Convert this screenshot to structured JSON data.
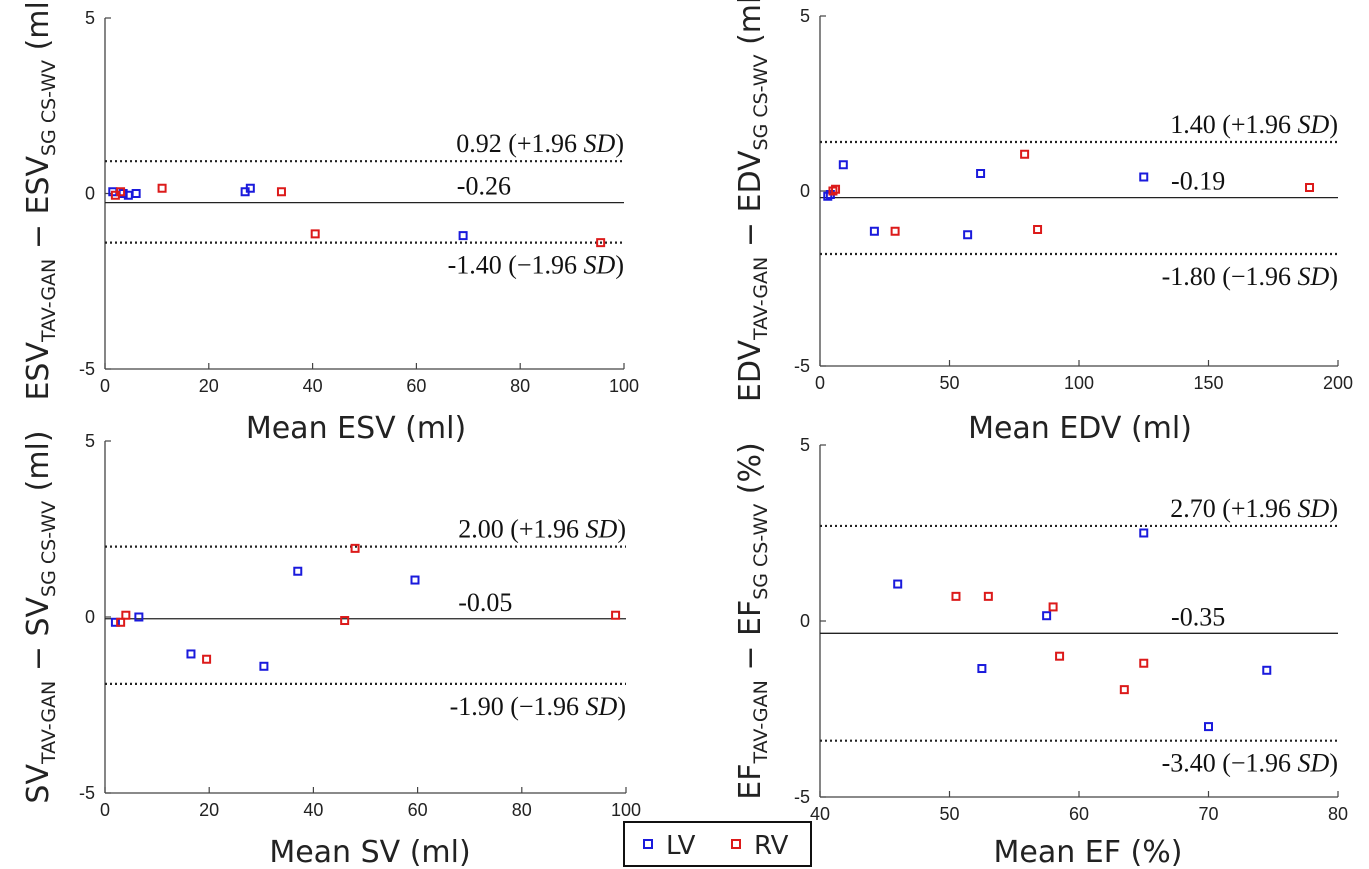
{
  "chart_data": [
    {
      "type": "scatter",
      "xlabel": "Mean ESV (ml)",
      "ylabel": {
        "main": "ESV",
        "sub1": "TAV-GAN",
        "mid": " − ESV",
        "sub2": "SG CS-WV",
        "unit": " (ml)"
      },
      "xlim": [
        0,
        100
      ],
      "ylim": [
        -5,
        5
      ],
      "xticks": [
        "0",
        "20",
        "40",
        "60",
        "80",
        "100"
      ],
      "yticks": [
        "-5",
        "0",
        "5"
      ],
      "mean": -0.26,
      "upper": 0.92,
      "lower": -1.4,
      "mean_label": "-0.26",
      "upper_label": "0.92 (+1.96 SD)",
      "lower_label": "-1.40 (−1.96 SD)",
      "series": [
        {
          "name": "LV",
          "points": [
            [
              1.5,
              0.05
            ],
            [
              3.5,
              0.0
            ],
            [
              4.5,
              -0.05
            ],
            [
              6,
              0.0
            ],
            [
              27,
              0.05
            ],
            [
              28,
              0.15
            ],
            [
              69,
              -1.2
            ]
          ]
        },
        {
          "name": "RV",
          "points": [
            [
              2,
              -0.05
            ],
            [
              3,
              0.05
            ],
            [
              11,
              0.15
            ],
            [
              34,
              0.05
            ],
            [
              40.5,
              -1.15
            ],
            [
              95.5,
              -1.4
            ]
          ]
        }
      ]
    },
    {
      "type": "scatter",
      "xlabel": "Mean EDV (ml)",
      "ylabel": {
        "main": "EDV",
        "sub1": "TAV-GAN",
        "mid": " − EDV",
        "sub2": "SG CS-WV",
        "unit": " (ml)"
      },
      "xlim": [
        0,
        200
      ],
      "ylim": [
        -5,
        5
      ],
      "xticks": [
        "0",
        "50",
        "100",
        "150",
        "200"
      ],
      "yticks": [
        "-5",
        "0",
        "5"
      ],
      "mean": -0.19,
      "upper": 1.4,
      "lower": -1.8,
      "mean_label": "-0.19",
      "upper_label": "1.40 (+1.96 SD)",
      "lower_label": "-1.80 (−1.96 SD)",
      "series": [
        {
          "name": "LV",
          "points": [
            [
              3,
              -0.15
            ],
            [
              4,
              -0.1
            ],
            [
              9,
              0.75
            ],
            [
              21,
              -1.15
            ],
            [
              57,
              -1.25
            ],
            [
              62,
              0.5
            ],
            [
              125,
              0.4
            ]
          ]
        },
        {
          "name": "RV",
          "points": [
            [
              5,
              0.0
            ],
            [
              6,
              0.05
            ],
            [
              29,
              -1.15
            ],
            [
              79,
              1.05
            ],
            [
              84,
              -1.1
            ],
            [
              189,
              0.1
            ]
          ]
        }
      ]
    },
    {
      "type": "scatter",
      "xlabel": "Mean SV (ml)",
      "ylabel": {
        "main": "SV",
        "sub1": "TAV-GAN",
        "mid": " − SV",
        "sub2": "SG CS-WV",
        "unit": " (ml)"
      },
      "xlim": [
        0,
        100
      ],
      "ylim": [
        -5,
        5
      ],
      "xticks": [
        "0",
        "20",
        "40",
        "60",
        "80",
        "100"
      ],
      "yticks": [
        "-5",
        "0",
        "5"
      ],
      "mean": -0.05,
      "upper": 2.0,
      "lower": -1.9,
      "mean_label": "-0.05",
      "upper_label": "2.00 (+1.96 SD)",
      "lower_label": "-1.90 (−1.96 SD)",
      "series": [
        {
          "name": "LV",
          "points": [
            [
              2,
              -0.15
            ],
            [
              6.5,
              0.0
            ],
            [
              16.5,
              -1.05
            ],
            [
              30.5,
              -1.4
            ],
            [
              37,
              1.3
            ],
            [
              59.5,
              1.05
            ]
          ]
        },
        {
          "name": "RV",
          "points": [
            [
              3,
              -0.15
            ],
            [
              4,
              0.05
            ],
            [
              19.5,
              -1.2
            ],
            [
              46,
              -0.1
            ],
            [
              48,
              1.95
            ],
            [
              98,
              0.05
            ]
          ]
        }
      ]
    },
    {
      "type": "scatter",
      "xlabel": "Mean EF (%)",
      "ylabel": {
        "main": "EF",
        "sub1": "TAV-GAN",
        "mid": " − EF",
        "sub2": "SG CS-WV",
        "unit": " (%)"
      },
      "xlim": [
        40,
        80
      ],
      "ylim": [
        -5,
        5
      ],
      "xticks": [
        "40",
        "50",
        "60",
        "70",
        "80"
      ],
      "yticks": [
        "-5",
        "0",
        "5"
      ],
      "mean": -0.35,
      "upper": 2.7,
      "lower": -3.4,
      "mean_label": "-0.35",
      "upper_label": "2.70 (+1.96 SD)",
      "lower_label": "-3.40 (−1.96 SD)",
      "series": [
        {
          "name": "LV",
          "points": [
            [
              46,
              1.05
            ],
            [
              52.5,
              -1.35
            ],
            [
              57.5,
              0.15
            ],
            [
              65,
              2.5
            ],
            [
              70,
              -3.0
            ],
            [
              74.5,
              -1.4
            ]
          ]
        },
        {
          "name": "RV",
          "points": [
            [
              50.5,
              0.7
            ],
            [
              53,
              0.7
            ],
            [
              58,
              0.4
            ],
            [
              58.5,
              -1.0
            ],
            [
              63.5,
              -1.95
            ],
            [
              65,
              -1.2
            ]
          ]
        }
      ]
    }
  ],
  "legend": {
    "items": [
      {
        "label": "LV",
        "color": "#1a1adc"
      },
      {
        "label": "RV",
        "color": "#dc1a1a"
      }
    ]
  },
  "colors": {
    "LV": "#1a1adc",
    "RV": "#dc1a1a",
    "axis": "#444444",
    "line": "#222222"
  }
}
